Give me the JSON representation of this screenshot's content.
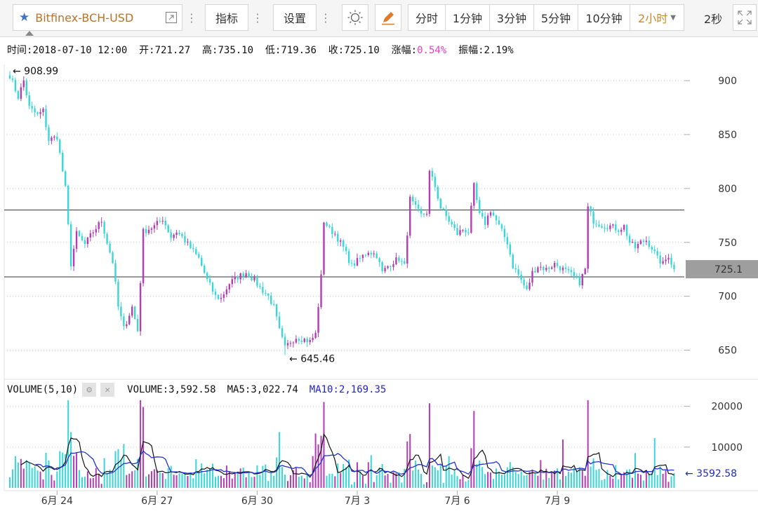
{
  "toolbar": {
    "symbol": "Bitfinex-BCH-USD",
    "indicators_label": "指标",
    "settings_label": "设置",
    "intervals": [
      "分时",
      "1分钟",
      "3分钟",
      "5分钟",
      "10分钟",
      "2小时"
    ],
    "active_interval": "2小时",
    "refresh": "2秒"
  },
  "info_bar": {
    "time_label": "时间:",
    "time": "2018-07-10 12:00",
    "open_label": "开:",
    "open": "721.27",
    "high_label": "高:",
    "high": "735.10",
    "low_label": "低:",
    "low": "719.36",
    "close_label": "收:",
    "close": "725.10",
    "change_label": "涨幅:",
    "change": "0.54%",
    "amplitude_label": "振幅:",
    "amplitude": "2.19%"
  },
  "volume_info": {
    "title": "VOLUME(5,10)",
    "volume_label": "VOLUME:",
    "volume": "3,592.58",
    "ma5_label": "MA5:",
    "ma5": "3,022.74",
    "ma10_label": "MA10:",
    "ma10": "2,169.35"
  },
  "colors": {
    "up": "#b43cb4",
    "down": "#38d6d6",
    "ma5": "#111111",
    "ma10": "#2233cc",
    "price_tag": "#9e9e9e"
  },
  "chart_data": {
    "type": "candlestick",
    "price_axis": {
      "ylim": [
        625,
        915
      ],
      "ticks": [
        650,
        700,
        750,
        800,
        850,
        900
      ]
    },
    "volume_axis": {
      "ylim": [
        0,
        22000
      ],
      "ticks": [
        10000,
        20000
      ]
    },
    "x_ticks": [
      "6月 24",
      "6月 27",
      "6月 30",
      "7月 3",
      "7月 6",
      "7月 9"
    ],
    "x_tick_candle_index": [
      17,
      53,
      89,
      125,
      161,
      197
    ],
    "current_price": "725.1",
    "high_marker": {
      "label": "← 908.99",
      "value": 908.99
    },
    "low_marker": {
      "label": "← 645.46",
      "value": 645.46
    },
    "last_volume_marker": {
      "label": "← 3592.58",
      "value": 3592.58
    },
    "horizontal_lines": [
      780,
      718
    ],
    "anchors": [
      [
        0,
        905
      ],
      [
        3,
        885
      ],
      [
        5,
        900
      ],
      [
        7,
        875
      ],
      [
        10,
        868
      ],
      [
        12,
        872
      ],
      [
        14,
        845
      ],
      [
        17,
        848
      ],
      [
        20,
        800
      ],
      [
        22,
        730
      ],
      [
        24,
        758
      ],
      [
        27,
        748
      ],
      [
        30,
        760
      ],
      [
        33,
        770
      ],
      [
        35,
        750
      ],
      [
        37,
        732
      ],
      [
        39,
        690
      ],
      [
        41,
        670
      ],
      [
        44,
        690
      ],
      [
        46,
        668
      ],
      [
        48,
        760
      ],
      [
        52,
        765
      ],
      [
        55,
        772
      ],
      [
        58,
        755
      ],
      [
        60,
        760
      ],
      [
        62,
        755
      ],
      [
        65,
        745
      ],
      [
        68,
        735
      ],
      [
        71,
        715
      ],
      [
        74,
        700
      ],
      [
        76,
        698
      ],
      [
        79,
        712
      ],
      [
        82,
        718
      ],
      [
        85,
        722
      ],
      [
        88,
        715
      ],
      [
        90,
        708
      ],
      [
        93,
        700
      ],
      [
        95,
        690
      ],
      [
        97,
        668
      ],
      [
        99,
        652
      ],
      [
        101,
        658
      ],
      [
        103,
        662
      ],
      [
        106,
        660
      ],
      [
        108,
        658
      ],
      [
        110,
        665
      ],
      [
        112,
        718
      ],
      [
        113,
        770
      ],
      [
        115,
        762
      ],
      [
        117,
        758
      ],
      [
        120,
        745
      ],
      [
        123,
        728
      ],
      [
        126,
        735
      ],
      [
        129,
        742
      ],
      [
        132,
        738
      ],
      [
        134,
        722
      ],
      [
        136,
        728
      ],
      [
        138,
        732
      ],
      [
        140,
        735
      ],
      [
        142,
        728
      ],
      [
        144,
        790
      ],
      [
        146,
        782
      ],
      [
        148,
        775
      ],
      [
        150,
        778
      ],
      [
        151,
        815
      ],
      [
        153,
        802
      ],
      [
        155,
        782
      ],
      [
        158,
        770
      ],
      [
        161,
        758
      ],
      [
        163,
        762
      ],
      [
        165,
        760
      ],
      [
        167,
        802
      ],
      [
        169,
        775
      ],
      [
        171,
        768
      ],
      [
        173,
        780
      ],
      [
        175,
        770
      ],
      [
        177,
        760
      ],
      [
        179,
        750
      ],
      [
        181,
        728
      ],
      [
        183,
        720
      ],
      [
        186,
        705
      ],
      [
        188,
        722
      ],
      [
        190,
        728
      ],
      [
        193,
        725
      ],
      [
        196,
        730
      ],
      [
        199,
        725
      ],
      [
        202,
        720
      ],
      [
        205,
        713
      ],
      [
        207,
        725
      ],
      [
        208,
        782
      ],
      [
        210,
        770
      ],
      [
        213,
        766
      ],
      [
        216,
        765
      ],
      [
        219,
        762
      ],
      [
        221,
        765
      ],
      [
        223,
        750
      ],
      [
        225,
        745
      ],
      [
        227,
        750
      ],
      [
        229,
        752
      ],
      [
        231,
        745
      ],
      [
        233,
        735
      ],
      [
        235,
        730
      ],
      [
        237,
        738
      ],
      [
        239,
        724
      ]
    ]
  }
}
